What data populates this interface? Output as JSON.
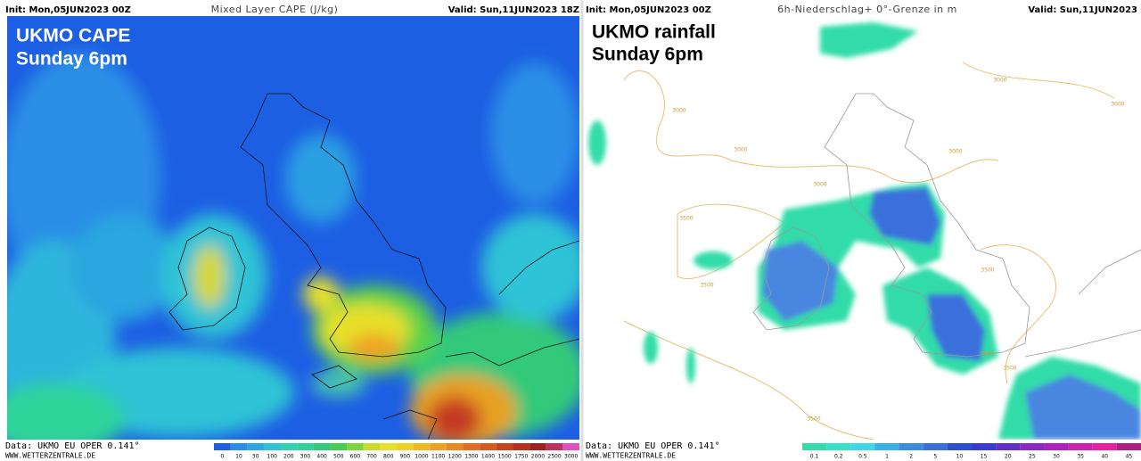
{
  "left_panel": {
    "init": "Init: Mon,05JUN2023 00Z",
    "title": "Mixed Layer CAPE (J/kg)",
    "valid": "Valid: Sun,11JUN2023 18Z",
    "overlay_title": "UKMO CAPE",
    "overlay_subtitle": "Sunday 6pm",
    "data_source": "Data: UKMO EU OPER 0.141°",
    "website": "WWW.WETTERZENTRALE.DE",
    "scale_labels": [
      0,
      10,
      30,
      100,
      200,
      300,
      400,
      500,
      600,
      700,
      800,
      900,
      1000,
      1100,
      1200,
      1300,
      1400,
      1500,
      1750,
      2000,
      2500,
      3000
    ]
  },
  "right_panel": {
    "init": "Init: Mon,05JUN2023 00Z",
    "title": "6h-Niederschlag+ 0°-Grenze in m",
    "valid": "Valid: Sun,11JUN2023",
    "overlay_title": "UKMO rainfall",
    "overlay_subtitle": "Sunday 6pm",
    "data_source": "Data: UKMO EU OPER 0.141°",
    "website": "WWW.WETTERZENTRALE.DE",
    "scale_labels": [
      0.1,
      0.2,
      0.5,
      1,
      2,
      5,
      10,
      15,
      20,
      25,
      30,
      35,
      40,
      45
    ],
    "contour_labels": [
      "3000",
      "3000",
      "3000",
      "3000",
      "3000",
      "3000",
      "3500",
      "3500",
      "3500",
      "3500",
      "3500",
      "3500"
    ]
  }
}
